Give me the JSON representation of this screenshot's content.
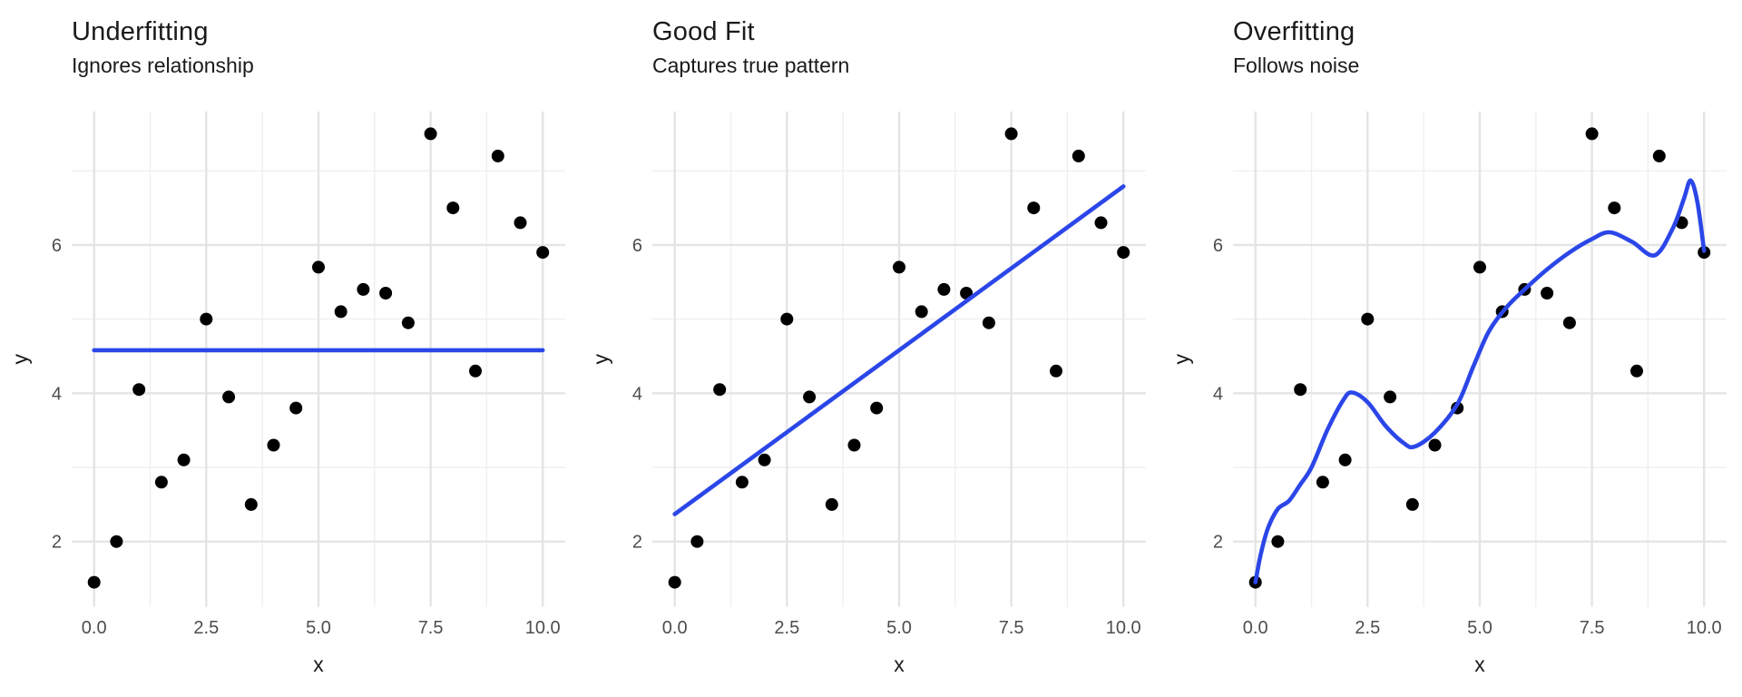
{
  "figure": {
    "background": "#ffffff",
    "panel_count": 3
  },
  "chart_data": {
    "type": "scatter",
    "xlabel": "x",
    "ylabel": "y",
    "xlim": [
      -0.5,
      10.5
    ],
    "ylim": [
      1.12,
      7.8
    ],
    "grid": "on",
    "legend": "none",
    "point_color": "#000000",
    "line_color": "#2b46e8",
    "grid_major_color": "#e4e4e4",
    "grid_minor_color": "#efefef",
    "tick_label_color": "#4d4d4d",
    "axis_title_color": "#1a1a1a",
    "x": [
      0,
      0.5,
      1,
      1.5,
      2,
      2.5,
      3,
      3.5,
      4,
      4.5,
      5,
      5.5,
      6,
      6.5,
      7,
      7.5,
      8,
      8.5,
      9,
      9.5,
      10
    ],
    "y": [
      1.45,
      2.0,
      4.05,
      2.8,
      3.1,
      5.0,
      3.95,
      2.5,
      3.3,
      3.8,
      5.7,
      5.1,
      5.4,
      5.35,
      4.95,
      7.5,
      6.5,
      4.3,
      7.2,
      6.3,
      5.9
    ],
    "x_ticks": {
      "major": [
        0,
        2.5,
        5,
        7.5,
        10
      ],
      "minor": [
        1.25,
        3.75,
        6.25,
        8.75
      ],
      "labels": [
        "0.0",
        "2.5",
        "5.0",
        "7.5",
        "10.0"
      ]
    },
    "y_ticks": {
      "major": [
        2,
        4,
        6
      ],
      "minor": [
        3,
        5,
        7
      ],
      "labels": [
        "2",
        "4",
        "6"
      ]
    },
    "panels": [
      {
        "title": "Underfitting",
        "subtitle": "Ignores relationship",
        "fit": {
          "kind": "constant",
          "mean": 4.58
        }
      },
      {
        "title": "Good Fit",
        "subtitle": "Captures true pattern",
        "fit": {
          "kind": "linear",
          "intercept": 2.37,
          "slope": 0.442
        }
      },
      {
        "title": "Overfitting",
        "subtitle": "Follows noise",
        "fit": {
          "kind": "spline",
          "curve": [
            [
              0,
              1.45
            ],
            [
              0.12,
              1.83
            ],
            [
              0.28,
              2.18
            ],
            [
              0.5,
              2.44
            ],
            [
              0.75,
              2.55
            ],
            [
              1.0,
              2.77
            ],
            [
              1.25,
              3.0
            ],
            [
              1.6,
              3.5
            ],
            [
              1.95,
              3.9
            ],
            [
              2.15,
              4.01
            ],
            [
              2.5,
              3.88
            ],
            [
              2.9,
              3.56
            ],
            [
              3.3,
              3.33
            ],
            [
              3.55,
              3.28
            ],
            [
              4.0,
              3.47
            ],
            [
              4.5,
              3.85
            ],
            [
              4.85,
              4.35
            ],
            [
              5.2,
              4.83
            ],
            [
              5.6,
              5.16
            ],
            [
              6.0,
              5.4
            ],
            [
              6.5,
              5.67
            ],
            [
              7.0,
              5.9
            ],
            [
              7.5,
              6.08
            ],
            [
              7.9,
              6.17
            ],
            [
              8.4,
              6.04
            ],
            [
              8.9,
              5.86
            ],
            [
              9.3,
              6.22
            ],
            [
              9.55,
              6.62
            ],
            [
              9.7,
              6.87
            ],
            [
              9.85,
              6.58
            ],
            [
              10,
              5.92
            ]
          ]
        }
      }
    ]
  }
}
